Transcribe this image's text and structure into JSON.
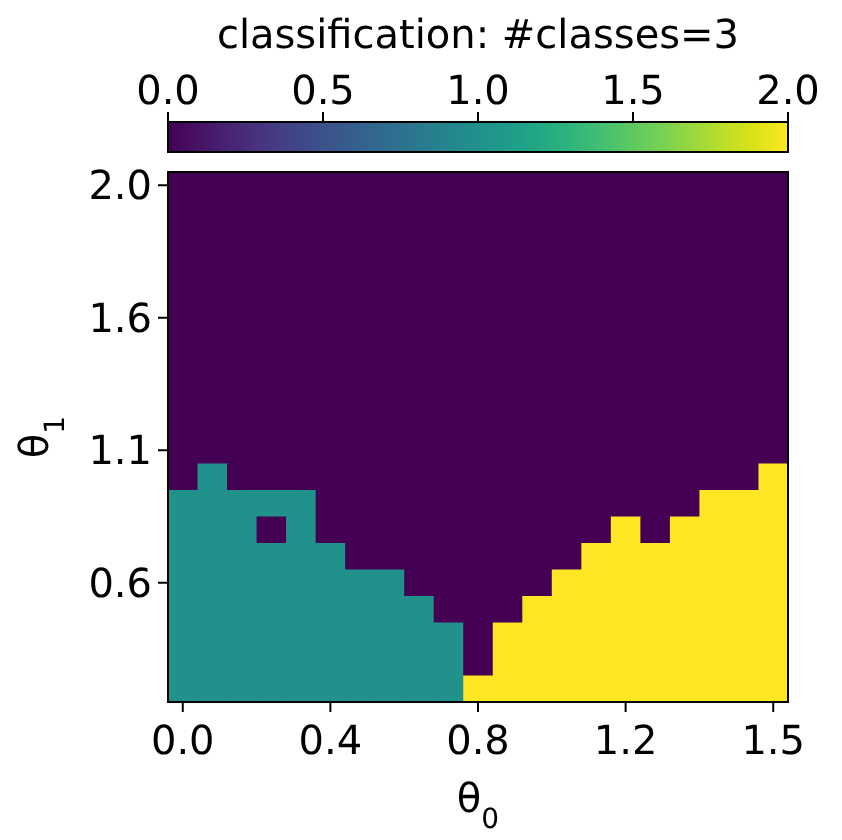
{
  "chart_data": {
    "type": "heatmap",
    "xlabel": "θ$_{0}$",
    "ylabel": "θ$_{1}$",
    "clabel": "classification: #classes=3",
    "categories": [
      "0.0",
      null,
      null,
      null,
      null,
      "0.4",
      null,
      null,
      null,
      null,
      "0.8",
      null,
      null,
      null,
      null,
      "1.2",
      null,
      null,
      null,
      null,
      "1.5"
    ],
    "y_categories": [
      "2.0",
      null,
      null,
      null,
      null,
      "1.6",
      null,
      null,
      null,
      null,
      "1.1",
      null,
      null,
      null,
      null,
      "0.6",
      null,
      null,
      null,
      null
    ],
    "clim": [
      0,
      2
    ],
    "cticks": [
      {
        "value": 0,
        "label": "0.0"
      },
      {
        "value": 0.5,
        "label": "0.5"
      },
      {
        "value": 1,
        "label": "1.0"
      },
      {
        "value": 1.5,
        "label": "1.5"
      },
      {
        "value": 2,
        "label": "2.0"
      }
    ],
    "cells": [
      [
        0,
        0,
        0,
        0,
        0,
        0,
        0,
        0,
        0,
        0,
        0,
        0,
        0,
        0,
        0,
        0,
        0,
        0,
        0,
        0,
        0
      ],
      [
        0,
        0,
        0,
        0,
        0,
        0,
        0,
        0,
        0,
        0,
        0,
        0,
        0,
        0,
        0,
        0,
        0,
        0,
        0,
        0,
        0
      ],
      [
        0,
        0,
        0,
        0,
        0,
        0,
        0,
        0,
        0,
        0,
        0,
        0,
        0,
        0,
        0,
        0,
        0,
        0,
        0,
        0,
        0
      ],
      [
        0,
        0,
        0,
        0,
        0,
        0,
        0,
        0,
        0,
        0,
        0,
        0,
        0,
        0,
        0,
        0,
        0,
        0,
        0,
        0,
        0
      ],
      [
        0,
        0,
        0,
        0,
        0,
        0,
        0,
        0,
        0,
        0,
        0,
        0,
        0,
        0,
        0,
        0,
        0,
        0,
        0,
        0,
        0
      ],
      [
        0,
        0,
        0,
        0,
        0,
        0,
        0,
        0,
        0,
        0,
        0,
        0,
        0,
        0,
        0,
        0,
        0,
        0,
        0,
        0,
        0
      ],
      [
        0,
        0,
        0,
        0,
        0,
        0,
        0,
        0,
        0,
        0,
        0,
        0,
        0,
        0,
        0,
        0,
        0,
        0,
        0,
        0,
        0
      ],
      [
        0,
        0,
        0,
        0,
        0,
        0,
        0,
        0,
        0,
        0,
        0,
        0,
        0,
        0,
        0,
        0,
        0,
        0,
        0,
        0,
        0
      ],
      [
        0,
        0,
        0,
        0,
        0,
        0,
        0,
        0,
        0,
        0,
        0,
        0,
        0,
        0,
        0,
        0,
        0,
        0,
        0,
        0,
        0
      ],
      [
        0,
        0,
        0,
        0,
        0,
        0,
        0,
        0,
        0,
        0,
        0,
        0,
        0,
        0,
        0,
        0,
        0,
        0,
        0,
        0,
        0
      ],
      [
        0,
        0,
        0,
        0,
        0,
        0,
        0,
        0,
        0,
        0,
        0,
        0,
        0,
        0,
        0,
        0,
        0,
        0,
        0,
        0,
        0
      ],
      [
        0,
        1,
        0,
        0,
        0,
        0,
        0,
        0,
        0,
        0,
        0,
        0,
        0,
        0,
        0,
        0,
        0,
        0,
        0,
        0,
        2
      ],
      [
        1,
        1,
        1,
        1,
        1,
        0,
        0,
        0,
        0,
        0,
        0,
        0,
        0,
        0,
        0,
        0,
        0,
        0,
        2,
        2,
        2
      ],
      [
        1,
        1,
        1,
        0,
        1,
        0,
        0,
        0,
        0,
        0,
        0,
        0,
        0,
        0,
        0,
        2,
        0,
        2,
        2,
        2,
        2
      ],
      [
        1,
        1,
        1,
        1,
        1,
        1,
        0,
        0,
        0,
        0,
        0,
        0,
        0,
        0,
        2,
        2,
        2,
        2,
        2,
        2,
        2
      ],
      [
        1,
        1,
        1,
        1,
        1,
        1,
        1,
        1,
        0,
        0,
        0,
        0,
        0,
        2,
        2,
        2,
        2,
        2,
        2,
        2,
        2
      ],
      [
        1,
        1,
        1,
        1,
        1,
        1,
        1,
        1,
        1,
        0,
        0,
        0,
        2,
        2,
        2,
        2,
        2,
        2,
        2,
        2,
        2
      ],
      [
        1,
        1,
        1,
        1,
        1,
        1,
        1,
        1,
        1,
        1,
        0,
        2,
        2,
        2,
        2,
        2,
        2,
        2,
        2,
        2,
        2
      ],
      [
        1,
        1,
        1,
        1,
        1,
        1,
        1,
        1,
        1,
        1,
        0,
        2,
        2,
        2,
        2,
        2,
        2,
        2,
        2,
        2,
        2
      ],
      [
        1,
        1,
        1,
        1,
        1,
        1,
        1,
        1,
        1,
        1,
        2,
        2,
        2,
        2,
        2,
        2,
        2,
        2,
        2,
        2,
        2
      ]
    ]
  }
}
